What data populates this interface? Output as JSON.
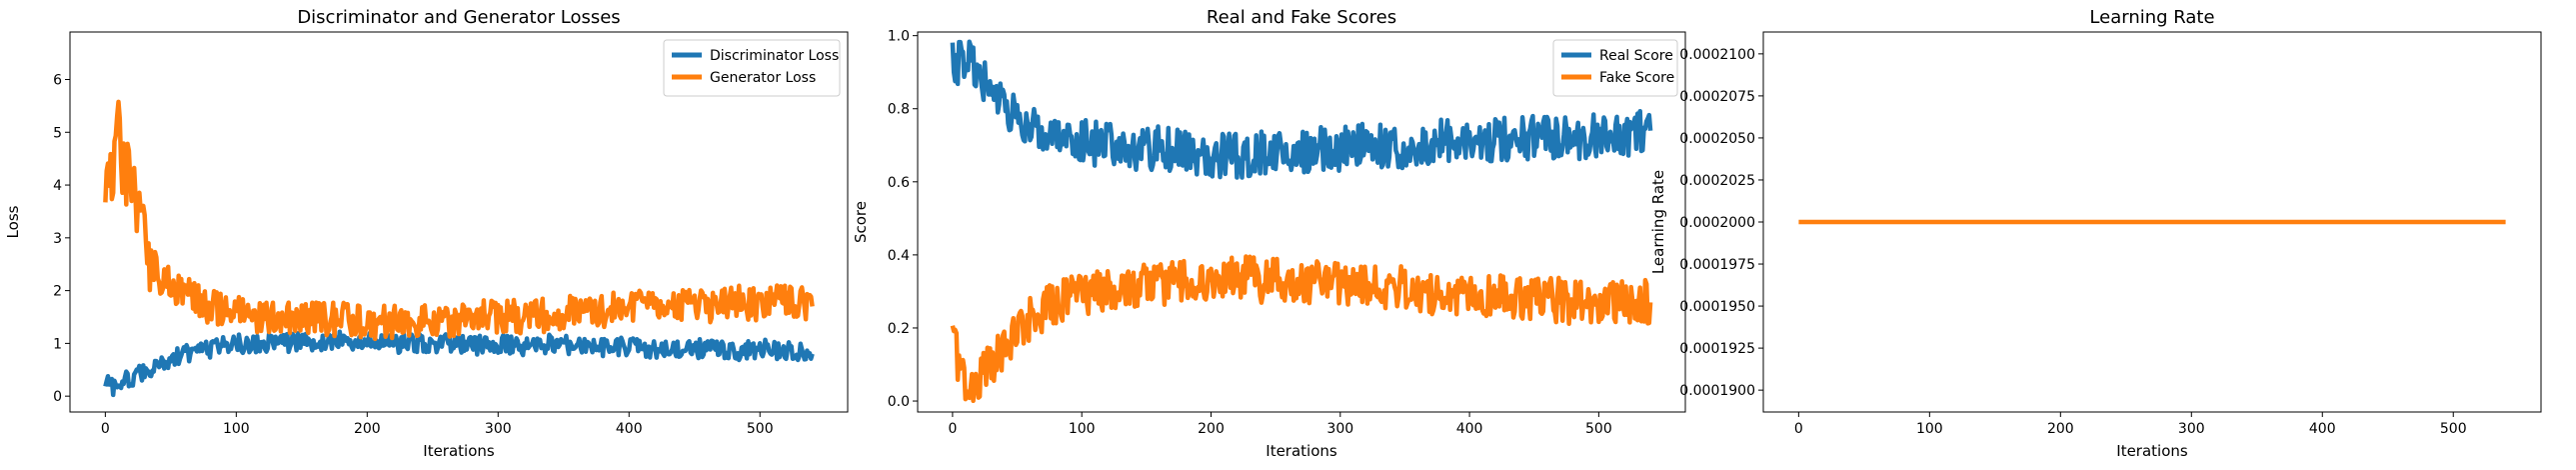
{
  "chart_data": [
    {
      "type": "line",
      "title": "Discriminator and Generator Losses",
      "xlabel": "Iterations",
      "ylabel": "Loss",
      "xlim": [
        -27,
        567
      ],
      "ylim": [
        -0.3,
        6.9
      ],
      "xticks": [
        0,
        100,
        200,
        300,
        400,
        500
      ],
      "yticks": [
        0,
        1,
        2,
        3,
        4,
        5,
        6
      ],
      "legend": "top-right",
      "grid": false,
      "series": [
        {
          "name": "Discriminator Loss",
          "color": "#1f77b4",
          "x": [
            0,
            3,
            6,
            10,
            15,
            20,
            25,
            30,
            35,
            40,
            50,
            60,
            70,
            80,
            90,
            100,
            120,
            140,
            160,
            180,
            200,
            220,
            240,
            260,
            280,
            300,
            320,
            340,
            360,
            380,
            400,
            420,
            440,
            460,
            480,
            500,
            520,
            540
          ],
          "y": [
            0.3,
            0.25,
            0.2,
            0.22,
            0.3,
            0.35,
            0.4,
            0.45,
            0.5,
            0.6,
            0.7,
            0.8,
            0.85,
            0.9,
            0.95,
            1.0,
            1.0,
            1.0,
            1.05,
            1.05,
            1.05,
            1.0,
            1.0,
            1.0,
            0.95,
            1.0,
            0.95,
            1.0,
            0.95,
            0.9,
            0.95,
            0.9,
            0.9,
            0.9,
            0.85,
            0.9,
            0.85,
            0.8
          ]
        },
        {
          "name": "Generator Loss",
          "color": "#ff7f0e",
          "x": [
            0,
            3,
            6,
            10,
            15,
            20,
            25,
            30,
            35,
            40,
            50,
            60,
            70,
            80,
            90,
            100,
            120,
            140,
            160,
            180,
            200,
            220,
            240,
            260,
            280,
            300,
            320,
            340,
            360,
            380,
            400,
            420,
            440,
            460,
            480,
            500,
            520,
            540
          ],
          "y": [
            4.0,
            3.6,
            4.5,
            5.0,
            4.2,
            4.0,
            3.5,
            3.0,
            2.6,
            2.3,
            2.1,
            2.0,
            1.8,
            1.7,
            1.6,
            1.6,
            1.5,
            1.5,
            1.5,
            1.45,
            1.4,
            1.4,
            1.45,
            1.4,
            1.5,
            1.5,
            1.5,
            1.55,
            1.6,
            1.6,
            1.7,
            1.7,
            1.75,
            1.7,
            1.8,
            1.75,
            1.8,
            1.7
          ]
        }
      ]
    },
    {
      "type": "line",
      "title": "Real and Fake Scores",
      "xlabel": "Iterations",
      "ylabel": "Score",
      "xlim": [
        -27,
        567
      ],
      "ylim": [
        -0.03,
        1.01
      ],
      "xticks": [
        0,
        100,
        200,
        300,
        400,
        500
      ],
      "yticks": [
        0.0,
        0.2,
        0.4,
        0.6,
        0.8,
        1.0
      ],
      "ytick_format": 1,
      "legend": "top-right",
      "grid": false,
      "series": [
        {
          "name": "Real Score",
          "color": "#1f77b4",
          "x": [
            0,
            5,
            10,
            15,
            20,
            25,
            30,
            35,
            40,
            50,
            60,
            70,
            80,
            90,
            100,
            120,
            140,
            160,
            180,
            200,
            220,
            240,
            260,
            280,
            300,
            320,
            340,
            360,
            380,
            400,
            420,
            440,
            460,
            480,
            500,
            520,
            540
          ],
          "y": [
            0.93,
            0.92,
            0.95,
            0.93,
            0.9,
            0.88,
            0.85,
            0.82,
            0.8,
            0.77,
            0.75,
            0.73,
            0.72,
            0.72,
            0.71,
            0.7,
            0.69,
            0.69,
            0.68,
            0.67,
            0.67,
            0.68,
            0.68,
            0.69,
            0.69,
            0.7,
            0.7,
            0.7,
            0.71,
            0.71,
            0.72,
            0.72,
            0.72,
            0.72,
            0.73,
            0.73,
            0.74
          ]
        },
        {
          "name": "Fake Score",
          "color": "#ff7f0e",
          "x": [
            0,
            5,
            10,
            15,
            20,
            25,
            30,
            35,
            40,
            50,
            60,
            70,
            80,
            90,
            100,
            120,
            140,
            160,
            180,
            200,
            220,
            240,
            260,
            280,
            300,
            320,
            340,
            360,
            380,
            400,
            420,
            440,
            460,
            480,
            500,
            520,
            540
          ],
          "y": [
            0.2,
            0.1,
            0.05,
            0.04,
            0.06,
            0.08,
            0.1,
            0.12,
            0.15,
            0.2,
            0.22,
            0.25,
            0.27,
            0.28,
            0.29,
            0.3,
            0.31,
            0.32,
            0.33,
            0.34,
            0.34,
            0.33,
            0.33,
            0.32,
            0.32,
            0.31,
            0.31,
            0.3,
            0.3,
            0.29,
            0.29,
            0.28,
            0.28,
            0.27,
            0.27,
            0.27,
            0.27
          ]
        }
      ]
    },
    {
      "type": "line",
      "title": "Learning Rate",
      "xlabel": "Iterations",
      "ylabel": "Learning Rate",
      "xlim": [
        -27,
        567
      ],
      "ylim": [
        0.0001887,
        0.0002113
      ],
      "xticks": [
        0,
        100,
        200,
        300,
        400,
        500
      ],
      "yticks": [
        0.00019,
        0.0001925,
        0.000195,
        0.0001975,
        0.0002,
        0.0002025,
        0.000205,
        0.0002075,
        0.00021
      ],
      "ytick_format": 7,
      "legend": "none",
      "grid": false,
      "series": [
        {
          "color": "#ff7f0e",
          "x": [
            0,
            540
          ],
          "y": [
            0.0002,
            0.0002
          ]
        }
      ]
    }
  ]
}
